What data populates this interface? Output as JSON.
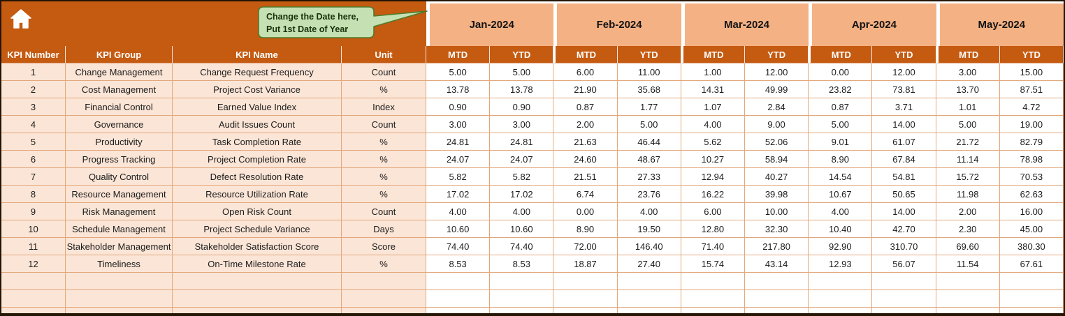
{
  "callout": {
    "line1": "Change the Date here,",
    "line2": "Put 1st Date of Year"
  },
  "months": [
    "Jan-2024",
    "Feb-2024",
    "Mar-2024",
    "Apr-2024",
    "May-2024"
  ],
  "period_headers": [
    "MTD",
    "YTD"
  ],
  "columns": [
    "KPI Number",
    "KPI Group",
    "KPI Name",
    "Unit"
  ],
  "rows": [
    {
      "num": "1",
      "group": "Change Management",
      "name": "Change Request Frequency",
      "unit": "Count",
      "values": [
        "5.00",
        "5.00",
        "6.00",
        "11.00",
        "1.00",
        "12.00",
        "0.00",
        "12.00",
        "3.00",
        "15.00"
      ]
    },
    {
      "num": "2",
      "group": "Cost Management",
      "name": "Project Cost Variance",
      "unit": "%",
      "values": [
        "13.78",
        "13.78",
        "21.90",
        "35.68",
        "14.31",
        "49.99",
        "23.82",
        "73.81",
        "13.70",
        "87.51"
      ]
    },
    {
      "num": "3",
      "group": "Financial Control",
      "name": "Earned Value Index",
      "unit": "Index",
      "values": [
        "0.90",
        "0.90",
        "0.87",
        "1.77",
        "1.07",
        "2.84",
        "0.87",
        "3.71",
        "1.01",
        "4.72"
      ]
    },
    {
      "num": "4",
      "group": "Governance",
      "name": "Audit Issues Count",
      "unit": "Count",
      "values": [
        "3.00",
        "3.00",
        "2.00",
        "5.00",
        "4.00",
        "9.00",
        "5.00",
        "14.00",
        "5.00",
        "19.00"
      ]
    },
    {
      "num": "5",
      "group": "Productivity",
      "name": "Task Completion Rate",
      "unit": "%",
      "values": [
        "24.81",
        "24.81",
        "21.63",
        "46.44",
        "5.62",
        "52.06",
        "9.01",
        "61.07",
        "21.72",
        "82.79"
      ]
    },
    {
      "num": "6",
      "group": "Progress Tracking",
      "name": "Project Completion Rate",
      "unit": "%",
      "values": [
        "24.07",
        "24.07",
        "24.60",
        "48.67",
        "10.27",
        "58.94",
        "8.90",
        "67.84",
        "11.14",
        "78.98"
      ]
    },
    {
      "num": "7",
      "group": "Quality Control",
      "name": "Defect Resolution Rate",
      "unit": "%",
      "values": [
        "5.82",
        "5.82",
        "21.51",
        "27.33",
        "12.94",
        "40.27",
        "14.54",
        "54.81",
        "15.72",
        "70.53"
      ]
    },
    {
      "num": "8",
      "group": "Resource Management",
      "name": "Resource Utilization Rate",
      "unit": "%",
      "values": [
        "17.02",
        "17.02",
        "6.74",
        "23.76",
        "16.22",
        "39.98",
        "10.67",
        "50.65",
        "11.98",
        "62.63"
      ]
    },
    {
      "num": "9",
      "group": "Risk Management",
      "name": "Open Risk Count",
      "unit": "Count",
      "values": [
        "4.00",
        "4.00",
        "0.00",
        "4.00",
        "6.00",
        "10.00",
        "4.00",
        "14.00",
        "2.00",
        "16.00"
      ]
    },
    {
      "num": "10",
      "group": "Schedule Management",
      "name": "Project Schedule Variance",
      "unit": "Days",
      "values": [
        "10.60",
        "10.60",
        "8.90",
        "19.50",
        "12.80",
        "32.30",
        "10.40",
        "42.70",
        "2.30",
        "45.00"
      ]
    },
    {
      "num": "11",
      "group": "Stakeholder Management",
      "name": "Stakeholder Satisfaction Score",
      "unit": "Score",
      "values": [
        "74.40",
        "74.40",
        "72.00",
        "146.40",
        "71.40",
        "217.80",
        "92.90",
        "310.70",
        "69.60",
        "380.30"
      ]
    },
    {
      "num": "12",
      "group": "Timeliness",
      "name": "On-Time Milestone Rate",
      "unit": "%",
      "values": [
        "8.53",
        "8.53",
        "18.87",
        "27.40",
        "15.74",
        "43.14",
        "12.93",
        "56.07",
        "11.54",
        "67.61"
      ]
    }
  ],
  "empty_rows": 3,
  "icons": {
    "home": "home-icon"
  },
  "colors": {
    "header_dark": "#c55a11",
    "month_band": "#f4b183",
    "row_band": "#fbe5d6",
    "grid_line": "#e2a87c",
    "callout_fill": "#c5e0b2",
    "callout_border": "#4f7a2b",
    "callout_text": "#17320c"
  }
}
